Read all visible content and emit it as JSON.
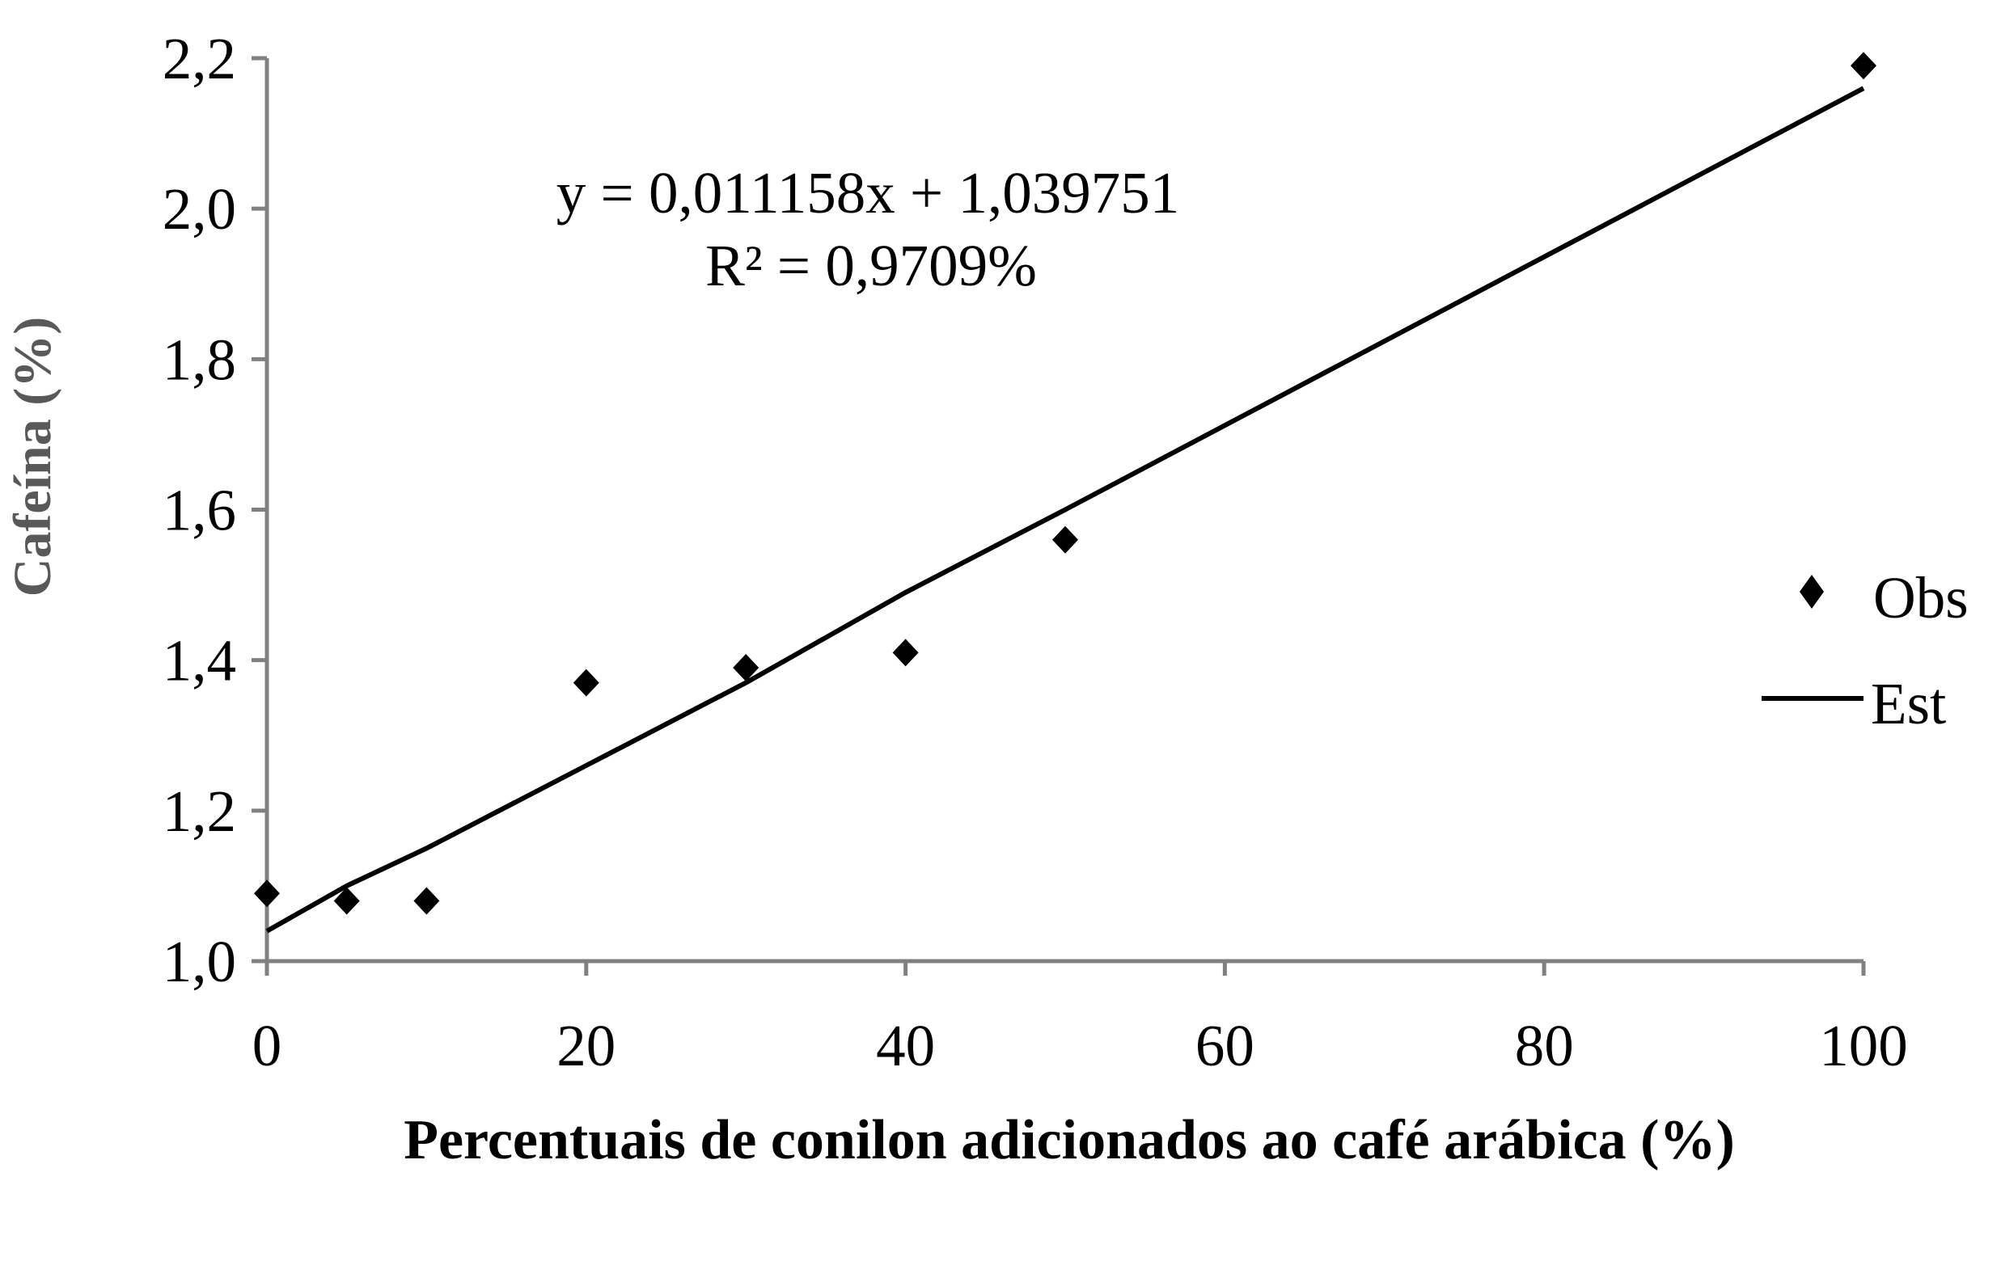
{
  "chart_data": {
    "type": "scatter",
    "xlabel": "Percentuais de conilon adicionados ao café arábica (%)",
    "ylabel": "Cafeína (%)",
    "xlim": [
      0,
      100
    ],
    "ylim": [
      1.0,
      2.2
    ],
    "x_ticks": [
      0,
      20,
      40,
      60,
      80,
      100
    ],
    "x_tick_labels": [
      "0",
      "20",
      "40",
      "60",
      "80",
      "100"
    ],
    "y_ticks": [
      1.0,
      1.2,
      1.4,
      1.6,
      1.8,
      2.0,
      2.2
    ],
    "y_tick_labels": [
      "1,0",
      "1,2",
      "1,4",
      "1,6",
      "1,8",
      "2,0",
      "2,2"
    ],
    "grid": false,
    "legend": "right",
    "series": [
      {
        "name": "Obs",
        "type": "scatter",
        "marker": "diamond",
        "x": [
          0,
          5,
          10,
          20,
          30,
          40,
          50,
          100
        ],
        "y": [
          1.09,
          1.08,
          1.08,
          1.37,
          1.39,
          1.41,
          1.56,
          2.19
        ]
      },
      {
        "name": "Est",
        "type": "line",
        "x": [
          0,
          5,
          10,
          20,
          30,
          40,
          50,
          100
        ],
        "y": [
          1.04,
          1.1,
          1.15,
          1.26,
          1.37,
          1.49,
          1.6,
          2.16
        ]
      }
    ],
    "annotations": {
      "equation": "y = 0,011158x + 1,039751",
      "r_squared": "R² = 0,9709%"
    },
    "colors": {
      "axis": "#808080",
      "series": "#000000",
      "ylabel": "#595959"
    }
  }
}
